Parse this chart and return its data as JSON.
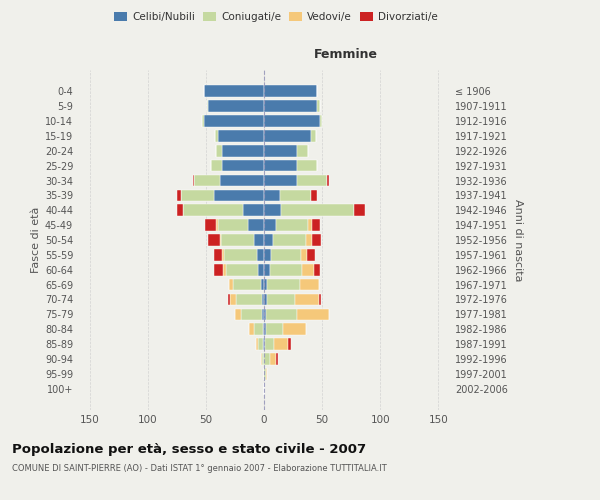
{
  "age_groups": [
    "0-4",
    "5-9",
    "10-14",
    "15-19",
    "20-24",
    "25-29",
    "30-34",
    "35-39",
    "40-44",
    "45-49",
    "50-54",
    "55-59",
    "60-64",
    "65-69",
    "70-74",
    "75-79",
    "80-84",
    "85-89",
    "90-94",
    "95-99",
    "100+"
  ],
  "birth_years": [
    "2002-2006",
    "1997-2001",
    "1992-1996",
    "1987-1991",
    "1982-1986",
    "1977-1981",
    "1972-1976",
    "1967-1971",
    "1962-1966",
    "1957-1961",
    "1952-1956",
    "1947-1951",
    "1942-1946",
    "1937-1941",
    "1932-1936",
    "1927-1931",
    "1922-1926",
    "1917-1921",
    "1912-1916",
    "1907-1911",
    "≤ 1906"
  ],
  "males": {
    "celibi": [
      52,
      48,
      52,
      40,
      36,
      36,
      38,
      43,
      18,
      14,
      9,
      6,
      5,
      3,
      2,
      2,
      1,
      1,
      0,
      0,
      0
    ],
    "coniugati": [
      0,
      1,
      1,
      2,
      5,
      10,
      22,
      28,
      52,
      26,
      28,
      28,
      28,
      24,
      22,
      18,
      8,
      4,
      2,
      0,
      0
    ],
    "vedovi": [
      0,
      0,
      0,
      0,
      0,
      0,
      0,
      0,
      0,
      1,
      1,
      2,
      2,
      3,
      5,
      5,
      4,
      2,
      1,
      0,
      0
    ],
    "divorziati": [
      0,
      0,
      0,
      0,
      0,
      0,
      1,
      4,
      5,
      10,
      10,
      7,
      8,
      0,
      2,
      0,
      0,
      0,
      0,
      0,
      0
    ]
  },
  "females": {
    "nubili": [
      46,
      46,
      48,
      40,
      28,
      28,
      28,
      14,
      15,
      10,
      8,
      6,
      5,
      3,
      3,
      2,
      2,
      1,
      0,
      0,
      0
    ],
    "coniugate": [
      0,
      2,
      2,
      5,
      10,
      18,
      26,
      26,
      62,
      28,
      28,
      26,
      28,
      28,
      24,
      26,
      14,
      8,
      5,
      2,
      0
    ],
    "vedove": [
      0,
      0,
      0,
      0,
      0,
      0,
      0,
      0,
      0,
      3,
      5,
      5,
      10,
      16,
      20,
      28,
      20,
      12,
      5,
      1,
      0
    ],
    "divorziate": [
      0,
      0,
      0,
      0,
      0,
      0,
      2,
      6,
      10,
      7,
      8,
      7,
      5,
      0,
      2,
      0,
      0,
      2,
      2,
      0,
      0
    ]
  },
  "colors": {
    "celibi": "#4a7bac",
    "coniugati": "#c5d9a0",
    "vedovi": "#f5c87a",
    "divorziati": "#cc2222"
  },
  "xlim": 160,
  "title": "Popolazione per età, sesso e stato civile - 2007",
  "subtitle": "COMUNE DI SAINT-PIERRE (AO) - Dati ISTAT 1° gennaio 2007 - Elaborazione TUTTITALIA.IT",
  "ylabel_left": "Fasce di età",
  "ylabel_right": "Anni di nascita",
  "xlabel_right": "Femmine",
  "bg_color": "#f0f0eb",
  "grid_color": "#cccccc"
}
